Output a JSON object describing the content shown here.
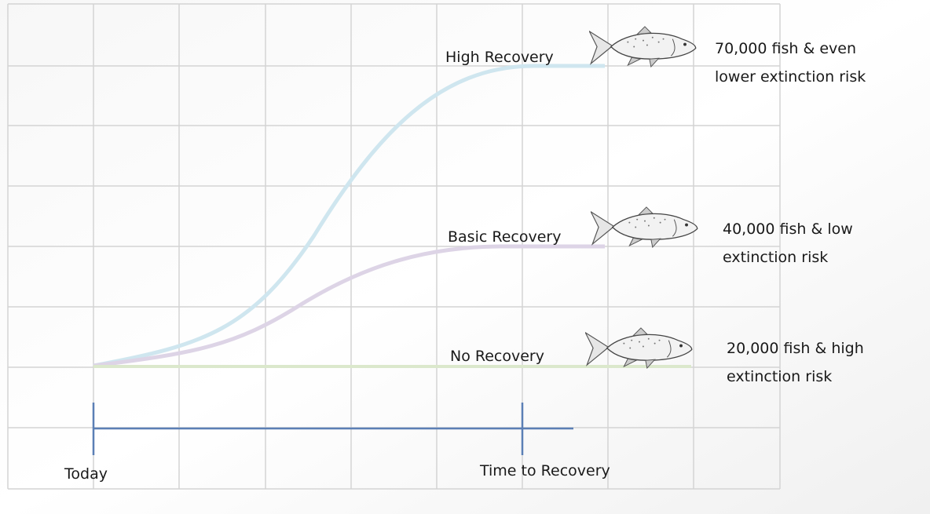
{
  "scenarios": [
    {
      "label": "High Recovery",
      "outcome": [
        "70,000 fish & even",
        "lower extinction risk"
      ]
    },
    {
      "label": "Basic Recovery",
      "outcome": [
        "40,000 fish & low",
        "extinction risk"
      ]
    },
    {
      "label": "No Recovery",
      "outcome": [
        "20,000 fish & high",
        "extinction risk"
      ]
    }
  ],
  "timeline": {
    "start": "Today",
    "end": "Time to Recovery"
  }
}
